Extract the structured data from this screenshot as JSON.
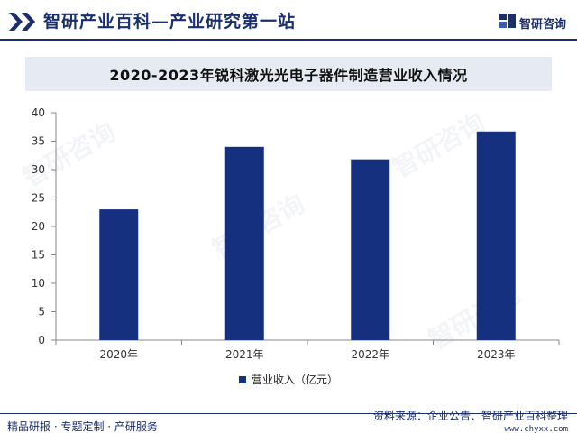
{
  "header": {
    "title": "智研产业百科—产业研究第一站",
    "brand": "智研咨询"
  },
  "chart_title": "2020-2023年锐科激光光电子器件制造营业收入情况",
  "chart_data": {
    "type": "bar",
    "title": "2020-2023年锐科激光光电子器件制造营业收入情况",
    "categories": [
      "2020年",
      "2021年",
      "2022年",
      "2023年"
    ],
    "series": [
      {
        "name": "营业收入（亿元）",
        "values": [
          23,
          34,
          31.8,
          36.7
        ]
      }
    ],
    "ylim": [
      0,
      40
    ],
    "yticks": [
      "0",
      "5",
      "10",
      "15",
      "20",
      "25",
      "30",
      "35",
      "40"
    ],
    "grid": false,
    "legend_position": "bottom",
    "bar_color": "#14307f"
  },
  "footer": {
    "left": "精品研报 · 专题定制 · 产研服务",
    "source": "资料来源：企业公告、智研产业百科整理",
    "url": "www.chyxx.com"
  },
  "watermark": "智研咨询"
}
